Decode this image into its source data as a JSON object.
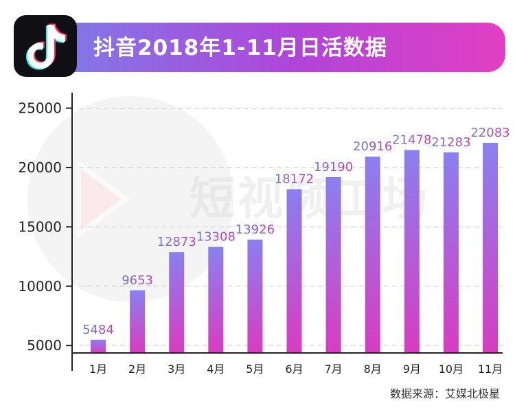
{
  "header": {
    "title": "抖音2018年1-11月日活数据",
    "logo_icon": "tiktok-note-icon"
  },
  "watermark": {
    "text": "短视频工场",
    "icon": "play-circle-icon"
  },
  "source": "数据来源：艾媒北极星",
  "colors": {
    "bar_top": "#8a80f0",
    "bar_bottom": "#d83cc0",
    "label_start": "#6b7bd8",
    "label_end": "#c23dbf",
    "banner_start": "#7d7de9",
    "banner_end": "#e23fc2"
  },
  "chart_data": {
    "type": "bar",
    "title": "抖音2018年1-11月日活数据",
    "xlabel": "",
    "ylabel": "",
    "categories": [
      "1月",
      "2月",
      "3月",
      "4月",
      "5月",
      "6月",
      "7月",
      "8月",
      "9月",
      "10月",
      "11月"
    ],
    "values": [
      5484,
      9653,
      12873,
      13308,
      13926,
      18172,
      19190,
      20916,
      21478,
      21283,
      22083
    ],
    "value_labels": [
      "5484",
      "9653",
      "12873",
      "13308",
      "13926",
      "18172",
      "19190",
      "20916",
      "21478",
      "21283",
      "22083"
    ],
    "ylim": [
      2000,
      27000
    ],
    "yticks": [
      5000,
      10000,
      15000,
      20000,
      25000
    ],
    "ytick_labels": [
      "5000",
      "10000",
      "15000",
      "20000",
      "25000"
    ],
    "grid": true,
    "legend": "none"
  }
}
